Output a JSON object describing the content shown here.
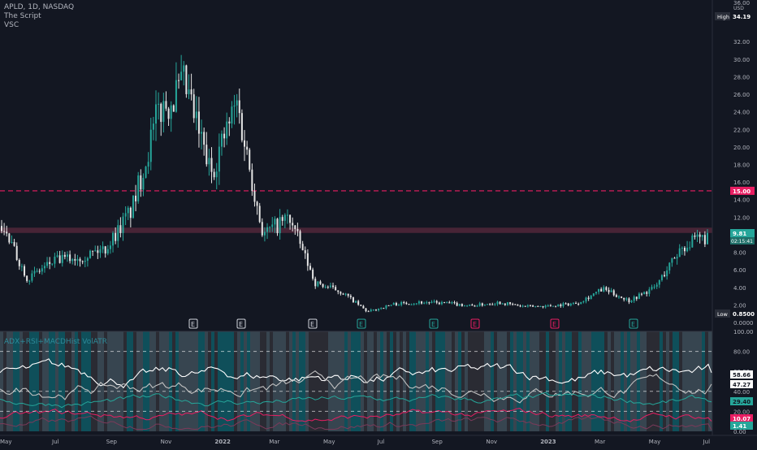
{
  "header": {
    "symbol": "APLD, 1D, NASDAQ",
    "script": "The Script",
    "vsc": "VSC"
  },
  "indicator_title": "ADX+RSI+MACDHist VolATR",
  "colors": {
    "background": "#131722",
    "bull": "#26a69a",
    "bear": "#e5e5e5",
    "resistance": "#e91e63",
    "zone": "#5a2a3d"
  },
  "price_axis": {
    "currency": "USD",
    "ticks": [
      "32.00",
      "30.00",
      "28.00",
      "26.00",
      "24.00",
      "22.00",
      "20.00",
      "18.00",
      "16.00",
      "14.00",
      "12.00",
      "10.00",
      "8.00",
      "6.00",
      "4.00",
      "2.00",
      "0.0000"
    ],
    "top_label": "36.00",
    "high": {
      "label": "High",
      "value": "34.19"
    },
    "resistance": {
      "value": "15.00"
    },
    "last": {
      "value": "9.81",
      "countdown": "02:15:41"
    },
    "low": {
      "label": "Low",
      "value": "0.8500"
    }
  },
  "osc_axis": {
    "ticks": [
      "100.00",
      "80.00",
      "60.00",
      "40.00",
      "20.00",
      "0.00"
    ],
    "labels": [
      {
        "value": "58.66",
        "color": "#ffffff",
        "text": "#131722"
      },
      {
        "value": "47.27",
        "color": "#ffffff",
        "text": "#131722"
      },
      {
        "value": "29.40",
        "color": "#26a69a",
        "text": "#131722"
      },
      {
        "value": "10.07",
        "color": "#e91e63",
        "text": "#ffffff"
      },
      {
        "value": "1.41",
        "color": "#26a69a",
        "text": "#ffffff"
      }
    ]
  },
  "time_axis": [
    "May",
    "Jul",
    "Sep",
    "Nov",
    "2022",
    "Mar",
    "May",
    "Jul",
    "Sep",
    "Nov",
    "2023",
    "Mar",
    "May",
    "Jul"
  ],
  "earnings_markers": [
    {
      "label": "E",
      "type": "past"
    },
    {
      "label": "E",
      "type": "past"
    },
    {
      "label": "E",
      "type": "past"
    },
    {
      "label": "E",
      "type": "teal"
    },
    {
      "label": "E",
      "type": "teal"
    },
    {
      "label": "E",
      "type": "red"
    },
    {
      "label": "E",
      "type": "red"
    },
    {
      "label": "E",
      "type": "teal"
    }
  ],
  "chart_data": {
    "type": "candlestick",
    "title": "APLD, 1D, NASDAQ",
    "ylim": [
      0,
      36
    ],
    "x": [
      "2021-04",
      "2021-05",
      "2021-06",
      "2021-07",
      "2021-08",
      "2021-09",
      "2021-10",
      "2021-11",
      "2021-12",
      "2022-01",
      "2022-02",
      "2022-03",
      "2022-04",
      "2022-05",
      "2022-06",
      "2022-07",
      "2022-08",
      "2022-09",
      "2022-10",
      "2022-11",
      "2022-12",
      "2023-01",
      "2023-02",
      "2023-03",
      "2023-04",
      "2023-05",
      "2023-06",
      "2023-07"
    ],
    "close": [
      11,
      5,
      7,
      7.5,
      8.5,
      13,
      24,
      27,
      17,
      25,
      10,
      12,
      4.5,
      3.5,
      1.2,
      2.1,
      2.3,
      2.2,
      1.9,
      2.3,
      1.8,
      1.9,
      2.2,
      3.8,
      2.5,
      4.0,
      8.6,
      9.81
    ],
    "resistance_level": 15.0,
    "zone": [
      10.2,
      10.8
    ],
    "oscillator": {
      "ylim": [
        0,
        100
      ],
      "reference_lines": [
        80,
        40,
        20
      ],
      "series": [
        {
          "last": 58.66
        },
        {
          "last": 47.27
        },
        {
          "last": 29.4
        },
        {
          "last": 10.07
        },
        {
          "last": 1.41
        }
      ]
    }
  }
}
